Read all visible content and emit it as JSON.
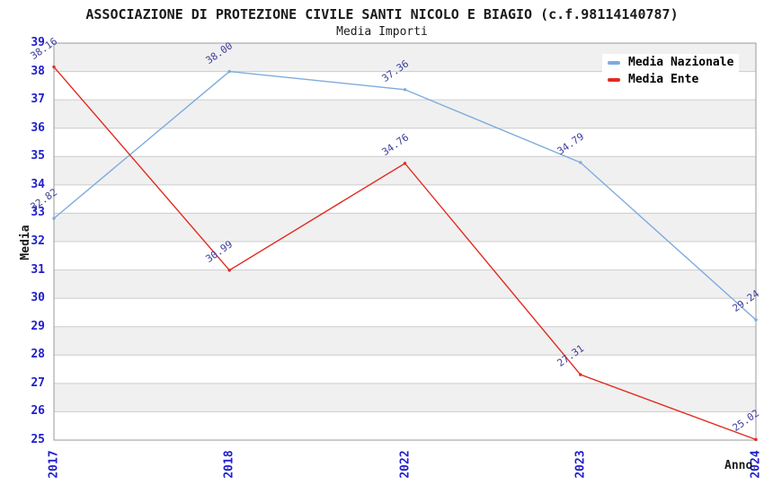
{
  "header": {
    "title": "ASSOCIAZIONE DI PROTEZIONE CIVILE SANTI NICOLO E BIAGIO (c.f.98114140787)",
    "subtitle": "Media Importi"
  },
  "chart_data": {
    "type": "line",
    "categories": [
      "2017",
      "2018",
      "2022",
      "2023",
      "2024"
    ],
    "series": [
      {
        "name": "Media Nazionale",
        "color": "#7dabde",
        "values": [
          32.82,
          38.0,
          37.36,
          34.79,
          29.24
        ]
      },
      {
        "name": "Media Ente",
        "color": "#e12b20",
        "values": [
          38.16,
          30.99,
          34.76,
          27.31,
          25.02
        ]
      }
    ],
    "xlabel": "Anno",
    "ylabel": "Media",
    "ylim": [
      25,
      39
    ],
    "y_tick_step": 1,
    "grid": true,
    "legend_position": "top-right",
    "colors": {
      "band": "#f0f0f0",
      "band_alt": "#ffffff",
      "gridline": "#cccccc",
      "axis_border": "#9a9a9a",
      "tick_label": "#2020cc",
      "point_label": "#3c3c9c"
    }
  }
}
